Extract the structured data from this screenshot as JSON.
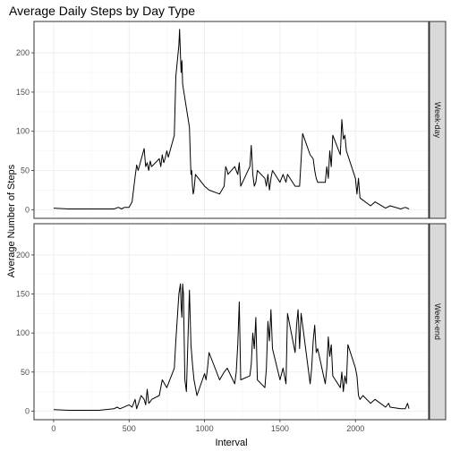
{
  "chart_data": {
    "type": "line",
    "title": "Average Daily Steps by Day Type",
    "xlabel": "Interval",
    "ylabel": "Average Number of Steps",
    "xlim": [
      -130,
      2485
    ],
    "ylim": [
      -11,
      240
    ],
    "x_ticks": [
      0,
      500,
      1000,
      1500,
      2000
    ],
    "y_ticks": [
      0,
      50,
      100,
      150,
      200
    ],
    "grid": true,
    "line_color": "#000000",
    "panels": [
      {
        "strip_label": "Week-day",
        "x": [
          0,
          100,
          200,
          300,
          400,
          430,
          450,
          470,
          500,
          520,
          540,
          550,
          560,
          600,
          610,
          620,
          630,
          640,
          650,
          700,
          710,
          720,
          730,
          740,
          750,
          760,
          800,
          810,
          820,
          830,
          835,
          840,
          845,
          850,
          855,
          900,
          905,
          910,
          915,
          920,
          925,
          930,
          935,
          940,
          1000,
          1030,
          1100,
          1130,
          1140,
          1150,
          1155,
          1200,
          1220,
          1230,
          1240,
          1300,
          1310,
          1320,
          1330,
          1340,
          1350,
          1400,
          1410,
          1420,
          1430,
          1440,
          1450,
          1500,
          1520,
          1540,
          1550,
          1600,
          1630,
          1650,
          1700,
          1720,
          1730,
          1740,
          1750,
          1800,
          1810,
          1820,
          1830,
          1840,
          1850,
          1900,
          1910,
          1920,
          1930,
          1940,
          2000,
          2010,
          2020,
          2030,
          2100,
          2130,
          2200,
          2230,
          2300,
          2330,
          2355
        ],
        "y": [
          2,
          1,
          1,
          1,
          1,
          3,
          1,
          3,
          3,
          10,
          42,
          57,
          50,
          78,
          55,
          60,
          50,
          62,
          55,
          65,
          55,
          70,
          60,
          66,
          75,
          67,
          95,
          170,
          190,
          210,
          230,
          200,
          175,
          190,
          160,
          105,
          75,
          45,
          50,
          30,
          20,
          25,
          35,
          45,
          30,
          25,
          20,
          30,
          55,
          50,
          45,
          55,
          45,
          60,
          30,
          55,
          82,
          45,
          30,
          35,
          50,
          40,
          30,
          45,
          25,
          40,
          50,
          35,
          45,
          35,
          45,
          30,
          30,
          97,
          70,
          65,
          50,
          40,
          35,
          35,
          55,
          40,
          75,
          55,
          95,
          70,
          115,
          90,
          95,
          75,
          40,
          20,
          40,
          15,
          5,
          10,
          2,
          5,
          1,
          3,
          1
        ]
      },
      {
        "strip_label": "Week-end",
        "x": [
          0,
          100,
          200,
          300,
          400,
          420,
          440,
          500,
          520,
          540,
          550,
          580,
          600,
          610,
          620,
          630,
          640,
          650,
          700,
          720,
          750,
          780,
          800,
          810,
          820,
          830,
          840,
          845,
          850,
          855,
          860,
          870,
          880,
          900,
          910,
          920,
          930,
          950,
          1000,
          1010,
          1020,
          1030,
          1100,
          1130,
          1150,
          1200,
          1210,
          1220,
          1230,
          1240,
          1300,
          1310,
          1320,
          1330,
          1340,
          1350,
          1400,
          1410,
          1420,
          1430,
          1440,
          1450,
          1500,
          1520,
          1540,
          1550,
          1600,
          1610,
          1620,
          1630,
          1640,
          1650,
          1700,
          1710,
          1720,
          1730,
          1740,
          1750,
          1800,
          1810,
          1820,
          1830,
          1840,
          1850,
          1900,
          1910,
          1920,
          1930,
          1940,
          1950,
          2000,
          2010,
          2020,
          2030,
          2050,
          2100,
          2130,
          2200,
          2220,
          2230,
          2300,
          2330,
          2345,
          2355
        ],
        "y": [
          2,
          1,
          1,
          1,
          3,
          5,
          3,
          8,
          5,
          15,
          3,
          20,
          15,
          8,
          28,
          10,
          12,
          15,
          20,
          40,
          30,
          45,
          55,
          90,
          120,
          150,
          163,
          135,
          120,
          163,
          150,
          40,
          25,
          155,
          85,
          60,
          40,
          20,
          48,
          40,
          55,
          75,
          40,
          50,
          55,
          35,
          50,
          85,
          140,
          40,
          45,
          60,
          100,
          80,
          120,
          40,
          30,
          55,
          115,
          90,
          130,
          80,
          40,
          55,
          35,
          125,
          75,
          110,
          130,
          80,
          125,
          110,
          35,
          55,
          90,
          110,
          75,
          80,
          35,
          55,
          95,
          70,
          85,
          45,
          30,
          50,
          25,
          45,
          35,
          85,
          55,
          45,
          20,
          15,
          20,
          10,
          15,
          5,
          10,
          5,
          3,
          3,
          10,
          3
        ]
      }
    ]
  }
}
